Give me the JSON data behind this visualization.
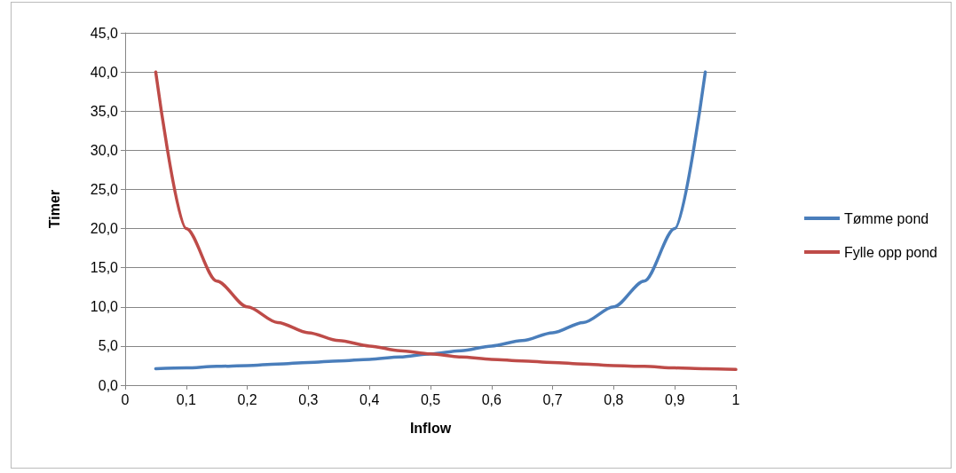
{
  "chart_data": {
    "type": "line",
    "xlabel": "Inflow",
    "ylabel": "Timer",
    "xlim": [
      0,
      1
    ],
    "xticks": [
      0,
      {
        "value": 0.1,
        "label": "0,1"
      },
      {
        "value": 0.2,
        "label": "0,2"
      },
      {
        "value": 0.3,
        "label": "0,3"
      },
      {
        "value": 0.4,
        "label": "0,4"
      },
      {
        "value": 0.5,
        "label": "0,5"
      },
      {
        "value": 0.6,
        "label": "0,6"
      },
      {
        "value": 0.7,
        "label": "0,7"
      },
      {
        "value": 0.8,
        "label": "0,8"
      },
      {
        "value": 0.9,
        "label": "0,9"
      },
      1
    ],
    "ylim": [
      0,
      45
    ],
    "yticks": [
      {
        "value": 0,
        "label": "0,0"
      },
      {
        "value": 5,
        "label": "5,0"
      },
      {
        "value": 10,
        "label": "10,0"
      },
      {
        "value": 15,
        "label": "15,0"
      },
      {
        "value": 20,
        "label": "20,0"
      },
      {
        "value": 25,
        "label": "25,0"
      },
      {
        "value": 30,
        "label": "30,0"
      },
      {
        "value": 35,
        "label": "35,0"
      },
      {
        "value": 40,
        "label": "40,0"
      },
      {
        "value": 45,
        "label": "45,0"
      }
    ],
    "grid": "y",
    "legend": "right",
    "marker": "none",
    "line_style": "solid",
    "series": [
      {
        "name": "Tømme pond",
        "color": "#4a7ebb",
        "x": [
          0.05,
          0.1,
          0.15,
          0.2,
          0.25,
          0.3,
          0.35,
          0.4,
          0.45,
          0.5,
          0.55,
          0.6,
          0.65,
          0.7,
          0.75,
          0.8,
          0.85,
          0.9,
          0.95
        ],
        "values": [
          2.1,
          2.2,
          2.4,
          2.5,
          2.7,
          2.9,
          3.1,
          3.3,
          3.6,
          4.0,
          4.4,
          5.0,
          5.7,
          6.7,
          8.0,
          10.0,
          13.3,
          20.0,
          40.0
        ]
      },
      {
        "name": "Fylle opp pond",
        "color": "#be4b48",
        "x": [
          0.05,
          0.1,
          0.15,
          0.2,
          0.25,
          0.3,
          0.35,
          0.4,
          0.45,
          0.5,
          0.55,
          0.6,
          0.65,
          0.7,
          0.75,
          0.8,
          0.85,
          0.9,
          0.95,
          1.0
        ],
        "values": [
          40.0,
          20.0,
          13.3,
          10.0,
          8.0,
          6.7,
          5.7,
          5.0,
          4.4,
          4.0,
          3.6,
          3.3,
          3.1,
          2.9,
          2.7,
          2.5,
          2.4,
          2.2,
          2.1,
          2.0
        ]
      }
    ]
  }
}
